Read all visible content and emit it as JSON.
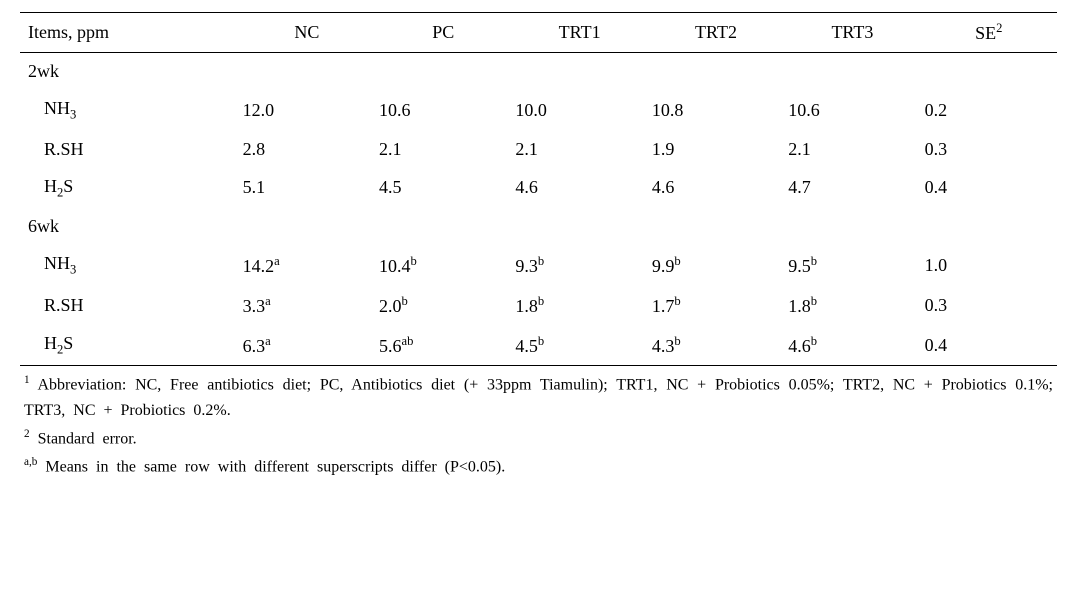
{
  "table": {
    "header": {
      "items_label": "Items, ppm",
      "columns": [
        "NC",
        "PC",
        "TRT1",
        "TRT2",
        "TRT3"
      ],
      "se_label": "SE",
      "se_sup": "2"
    },
    "sections": [
      {
        "label": "2wk",
        "rows": [
          {
            "label_html": "NH<sub>3</sub>",
            "cells": [
              {
                "v": "12.0",
                "s": ""
              },
              {
                "v": "10.6",
                "s": ""
              },
              {
                "v": "10.0",
                "s": ""
              },
              {
                "v": "10.8",
                "s": ""
              },
              {
                "v": "10.6",
                "s": ""
              }
            ],
            "se": "0.2"
          },
          {
            "label_html": "R.SH",
            "cells": [
              {
                "v": "2.8",
                "s": ""
              },
              {
                "v": "2.1",
                "s": ""
              },
              {
                "v": "2.1",
                "s": ""
              },
              {
                "v": "1.9",
                "s": ""
              },
              {
                "v": "2.1",
                "s": ""
              }
            ],
            "se": "0.3"
          },
          {
            "label_html": "H<sub>2</sub>S",
            "cells": [
              {
                "v": "5.1",
                "s": ""
              },
              {
                "v": "4.5",
                "s": ""
              },
              {
                "v": "4.6",
                "s": ""
              },
              {
                "v": "4.6",
                "s": ""
              },
              {
                "v": "4.7",
                "s": ""
              }
            ],
            "se": "0.4"
          }
        ]
      },
      {
        "label": "6wk",
        "rows": [
          {
            "label_html": "NH<sub>3</sub>",
            "cells": [
              {
                "v": "14.2",
                "s": "a"
              },
              {
                "v": "10.4",
                "s": "b"
              },
              {
                "v": "9.3",
                "s": "b"
              },
              {
                "v": "9.9",
                "s": "b"
              },
              {
                "v": "9.5",
                "s": "b"
              }
            ],
            "se": "1.0"
          },
          {
            "label_html": "R.SH",
            "cells": [
              {
                "v": "3.3",
                "s": "a"
              },
              {
                "v": "2.0",
                "s": "b"
              },
              {
                "v": "1.8",
                "s": "b"
              },
              {
                "v": "1.7",
                "s": "b"
              },
              {
                "v": "1.8",
                "s": "b"
              }
            ],
            "se": "0.3"
          },
          {
            "label_html": "H<sub>2</sub>S",
            "cells": [
              {
                "v": "6.3",
                "s": "a"
              },
              {
                "v": "5.6",
                "s": "ab"
              },
              {
                "v": "4.5",
                "s": "b"
              },
              {
                "v": "4.3",
                "s": "b"
              },
              {
                "v": "4.6",
                "s": "b"
              }
            ],
            "se": "0.4"
          }
        ]
      }
    ]
  },
  "footnotes": {
    "f1_sup": "1",
    "f1_text": " Abbreviation: NC, Free antibiotics diet; PC, Antibiotics diet (+ 33ppm Tiamulin); TRT1, NC + Probiotics 0.05%;  TRT2, NC + Probiotics 0.1%; TRT3, NC + Probiotics 0.2%.",
    "f2_sup": "2",
    "f2_text": " Standard error.",
    "f3_sup": "a,b",
    "f3_text": " Means in the same row with different superscripts differ (P<0.05)."
  }
}
